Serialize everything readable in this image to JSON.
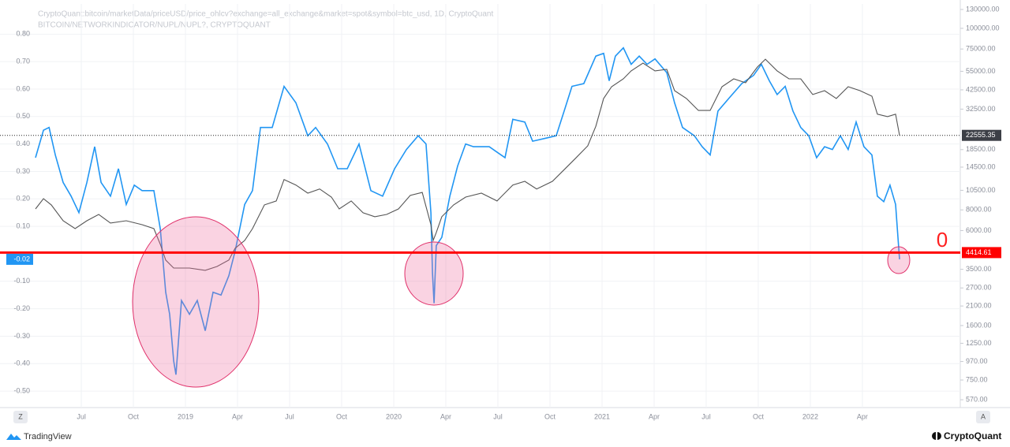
{
  "chart_data": {
    "type": "line",
    "legend_lines": [
      "CryptoQuant:bitcoin/marketData/priceUSD/price_ohlcv?exchange=all_exchange&market=spot&symbol=btc_usd, 1D, CryptoQuant",
      "BITCOIN/NETWORKINDICATOR/NUPL/NUPL?, CRYPTOQUANT"
    ],
    "xlim": [
      -8.64,
      44.64
    ],
    "xticks": [
      {
        "value": -6,
        "label": "Jul"
      },
      {
        "value": -3,
        "label": "Oct"
      },
      {
        "value": 0,
        "label": "2019"
      },
      {
        "value": 3,
        "label": "Apr"
      },
      {
        "value": 6,
        "label": "Jul"
      },
      {
        "value": 9,
        "label": "Oct"
      },
      {
        "value": 12,
        "label": "2020"
      },
      {
        "value": 15,
        "label": "Apr"
      },
      {
        "value": 18,
        "label": "Jul"
      },
      {
        "value": 21,
        "label": "Oct"
      },
      {
        "value": 24,
        "label": "2021"
      },
      {
        "value": 27,
        "label": "Apr"
      },
      {
        "value": 30,
        "label": "Jul"
      },
      {
        "value": 33,
        "label": "Oct"
      },
      {
        "value": 36,
        "label": "2022"
      },
      {
        "value": 39,
        "label": "Apr"
      }
    ],
    "ylim": [
      -0.56,
      0.91
    ],
    "yticks": [
      {
        "value": 0.8,
        "label": "0.80"
      },
      {
        "value": 0.7,
        "label": "0.70"
      },
      {
        "value": 0.6,
        "label": "0.60"
      },
      {
        "value": 0.5,
        "label": "0.50"
      },
      {
        "value": 0.4,
        "label": "0.40"
      },
      {
        "value": 0.3,
        "label": "0.30"
      },
      {
        "value": 0.2,
        "label": "0.20"
      },
      {
        "value": 0.1,
        "label": "0.10"
      },
      {
        "value": -0.1,
        "label": "-0.10"
      },
      {
        "value": -0.2,
        "label": "-0.20"
      },
      {
        "value": -0.3,
        "label": "-0.30"
      },
      {
        "value": -0.4,
        "label": "-0.40"
      },
      {
        "value": -0.5,
        "label": "-0.50"
      }
    ],
    "y2lim": [
      511,
      140400
    ],
    "y2_log": true,
    "y2ticks": [
      {
        "value": 130000,
        "label": "130000.00"
      },
      {
        "value": 100000,
        "label": "100000.00"
      },
      {
        "value": 75000,
        "label": "75000.00"
      },
      {
        "value": 55000,
        "label": "55000.00"
      },
      {
        "value": 42500,
        "label": "42500.00"
      },
      {
        "value": 32500,
        "label": "32500.00"
      },
      {
        "value": 18500,
        "label": "18500.00"
      },
      {
        "value": 14500,
        "label": "14500.00"
      },
      {
        "value": 10500,
        "label": "10500.00"
      },
      {
        "value": 8000,
        "label": "8000.00"
      },
      {
        "value": 6000,
        "label": "6000.00"
      },
      {
        "value": 3500,
        "label": "3500.00"
      },
      {
        "value": 2700,
        "label": "2700.00"
      },
      {
        "value": 2100,
        "label": "2100.00"
      },
      {
        "value": 1600,
        "label": "1600.00"
      },
      {
        "value": 1250,
        "label": "1250.00"
      },
      {
        "value": 970,
        "label": "970.00"
      },
      {
        "value": 750,
        "label": "750.00"
      },
      {
        "value": 570,
        "label": "570.00"
      }
    ],
    "grid": true,
    "series": [
      {
        "color": "#2196f3",
        "axis": "y",
        "last_value_label": "-0.02",
        "x": [
          -8.64,
          -8.18,
          -7.86,
          -7.5,
          -7.05,
          -6.59,
          -6.14,
          -5.68,
          -5.23,
          -4.86,
          -4.32,
          -3.86,
          -3.41,
          -2.95,
          -2.5,
          -1.82,
          -1.45,
          -1.14,
          -0.91,
          -0.68,
          -0.55,
          -0.23,
          0.23,
          0.68,
          1.14,
          1.59,
          2.05,
          2.5,
          2.86,
          3.41,
          3.86,
          4.32,
          5.0,
          5.68,
          6.36,
          7.05,
          7.5,
          8.18,
          8.77,
          9.32,
          10.0,
          10.68,
          11.36,
          12.05,
          12.73,
          13.41,
          13.86,
          14.14,
          14.23,
          14.32,
          14.45,
          14.77,
          15.23,
          15.68,
          16.14,
          16.59,
          17.5,
          18.41,
          18.86,
          19.55,
          20.0,
          20.68,
          21.36,
          21.82,
          22.27,
          22.95,
          23.64,
          24.09,
          24.41,
          24.77,
          25.23,
          25.68,
          26.14,
          26.59,
          27.05,
          27.73,
          28.18,
          28.64,
          29.32,
          29.77,
          30.23,
          30.68,
          31.36,
          32.05,
          32.73,
          33.18,
          33.64,
          34.09,
          34.55,
          35.0,
          35.45,
          35.91,
          36.36,
          36.82,
          37.27,
          37.73,
          38.18,
          38.64,
          39.09,
          39.55,
          39.86,
          40.23,
          40.59,
          40.91,
          41.14
        ],
        "values": [
          0.35,
          0.45,
          0.46,
          0.36,
          0.26,
          0.21,
          0.15,
          0.26,
          0.39,
          0.26,
          0.21,
          0.31,
          0.18,
          0.25,
          0.23,
          0.23,
          0.09,
          -0.14,
          -0.22,
          -0.39,
          -0.44,
          -0.17,
          -0.22,
          -0.17,
          -0.28,
          -0.14,
          -0.15,
          -0.08,
          0.01,
          0.18,
          0.23,
          0.46,
          0.46,
          0.61,
          0.55,
          0.43,
          0.46,
          0.4,
          0.31,
          0.31,
          0.4,
          0.23,
          0.21,
          0.31,
          0.38,
          0.43,
          0.4,
          0.15,
          -0.07,
          -0.18,
          0.03,
          0.06,
          0.21,
          0.32,
          0.4,
          0.39,
          0.39,
          0.35,
          0.49,
          0.48,
          0.41,
          0.42,
          0.43,
          0.52,
          0.61,
          0.62,
          0.72,
          0.73,
          0.63,
          0.72,
          0.75,
          0.69,
          0.72,
          0.69,
          0.71,
          0.66,
          0.55,
          0.46,
          0.43,
          0.39,
          0.36,
          0.52,
          0.57,
          0.62,
          0.65,
          0.69,
          0.63,
          0.58,
          0.61,
          0.52,
          0.46,
          0.43,
          0.35,
          0.39,
          0.38,
          0.43,
          0.38,
          0.48,
          0.39,
          0.36,
          0.21,
          0.19,
          0.25,
          0.18,
          -0.02
        ]
      },
      {
        "color": "#555555",
        "axis": "y2",
        "last_value_label": "22555.35",
        "x": [
          -8.64,
          -8.18,
          -7.73,
          -7.05,
          -6.36,
          -5.68,
          -5.0,
          -4.32,
          -3.41,
          -2.5,
          -1.82,
          -1.45,
          -1.14,
          -0.68,
          0.23,
          1.14,
          1.82,
          2.5,
          2.86,
          3.41,
          3.86,
          4.55,
          5.23,
          5.68,
          6.36,
          7.05,
          7.73,
          8.41,
          8.86,
          9.55,
          10.23,
          10.91,
          11.59,
          12.27,
          12.95,
          13.64,
          14.14,
          14.27,
          14.45,
          14.77,
          15.45,
          16.14,
          17.05,
          17.95,
          18.86,
          19.55,
          20.23,
          21.14,
          21.82,
          22.5,
          23.18,
          23.64,
          24.09,
          24.55,
          25.23,
          25.68,
          26.36,
          27.05,
          27.73,
          28.18,
          28.86,
          29.55,
          30.23,
          30.91,
          31.59,
          32.27,
          32.95,
          33.41,
          34.09,
          34.77,
          35.45,
          36.14,
          36.82,
          37.5,
          38.18,
          38.86,
          39.55,
          39.86,
          40.45,
          40.91,
          41.14
        ],
        "values": [
          8110,
          9350,
          8570,
          6880,
          6160,
          6880,
          7510,
          6660,
          6880,
          6510,
          6160,
          4950,
          3980,
          3560,
          3560,
          3450,
          3640,
          3980,
          4690,
          5230,
          6160,
          8570,
          9060,
          12200,
          11300,
          10100,
          10700,
          9560,
          8110,
          9060,
          7680,
          7270,
          7510,
          8110,
          9780,
          10200,
          6510,
          5230,
          5840,
          7270,
          8570,
          9560,
          10100,
          9060,
          11300,
          11900,
          10700,
          11900,
          14000,
          16500,
          19500,
          25600,
          37700,
          44400,
          49500,
          55300,
          61700,
          55300,
          56500,
          42000,
          37700,
          31900,
          31900,
          44400,
          49500,
          46900,
          58400,
          65100,
          55300,
          49500,
          49500,
          39800,
          42000,
          37700,
          44400,
          42000,
          38900,
          30300,
          29300,
          30300,
          22555.35
        ]
      }
    ],
    "hline": {
      "value": 4414.61,
      "label": "4414.61",
      "color": "#ff0000",
      "axis": "y2"
    },
    "annotation": "0",
    "buttons": [
      "Z",
      "A"
    ],
    "footer_left": "TradingView",
    "footer_right": "CryptoQuant"
  }
}
